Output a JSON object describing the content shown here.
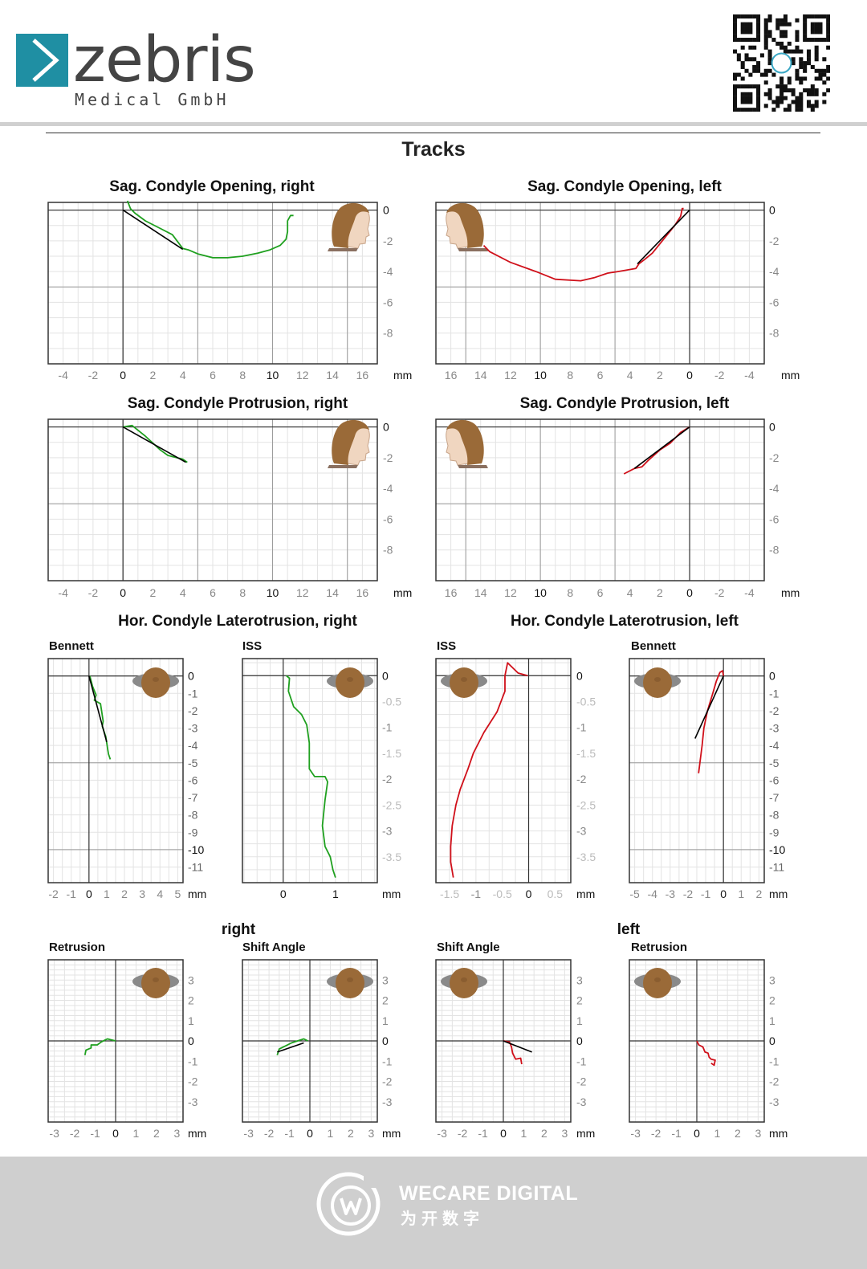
{
  "header": {
    "brand": "zebris",
    "brand_sub": "Medical GmbH",
    "brand_color": "#1f8fa3",
    "qr_code": "qr-code-icon"
  },
  "page_title": "Tracks",
  "sections": {
    "right": "right",
    "left": "left"
  },
  "colors": {
    "right_trace": "#1fa01f",
    "left_trace": "#d0101a",
    "fit_line": "#000000",
    "grid_major": "#999999",
    "grid_minor": "#e3e3e3",
    "head_skin": "#9a6a38",
    "head_disc": "#8a8a8a"
  },
  "chart_data": [
    {
      "id": "sag-opening-right",
      "type": "line",
      "title": "Sag. Condyle Opening, right",
      "unit": "mm",
      "xlim": [
        -5,
        17
      ],
      "ylim": [
        -10,
        0.5
      ],
      "x_ticks": [
        -4,
        -2,
        0,
        2,
        4,
        6,
        8,
        10,
        12,
        14,
        16
      ],
      "y_ticks": [
        0,
        -2,
        -4,
        -6,
        -8
      ],
      "icon": "face-right",
      "series": [
        {
          "kind": "trace",
          "side": "right",
          "points": [
            [
              0.3,
              0.6
            ],
            [
              0.5,
              0.1
            ],
            [
              0.8,
              -0.2
            ],
            [
              1.5,
              -0.7
            ],
            [
              2.5,
              -1.2
            ],
            [
              3.3,
              -1.6
            ],
            [
              4,
              -2.5
            ],
            [
              4.4,
              -2.6
            ],
            [
              5,
              -2.85
            ],
            [
              6,
              -3.1
            ],
            [
              7,
              -3.1
            ],
            [
              8,
              -3.0
            ],
            [
              9,
              -2.8
            ],
            [
              9.8,
              -2.6
            ],
            [
              10.5,
              -2.3
            ],
            [
              10.9,
              -1.9
            ],
            [
              11,
              -1.4
            ],
            [
              11,
              -0.7
            ],
            [
              11.2,
              -0.35
            ],
            [
              11.4,
              -0.35
            ]
          ]
        },
        {
          "kind": "fit",
          "points": [
            [
              0,
              0
            ],
            [
              4,
              -2.55
            ]
          ]
        }
      ]
    },
    {
      "id": "sag-opening-left",
      "type": "line",
      "title": "Sag. Condyle Opening, left",
      "unit": "mm",
      "xlim": [
        17,
        -5
      ],
      "ylim": [
        -10,
        0.5
      ],
      "x_ticks": [
        16,
        14,
        12,
        10,
        8,
        6,
        4,
        2,
        0,
        -2,
        -4
      ],
      "y_ticks": [
        0,
        -2,
        -4,
        -6,
        -8
      ],
      "icon": "face-left",
      "series": [
        {
          "kind": "trace",
          "side": "left",
          "points": [
            [
              13.8,
              -2.3
            ],
            [
              13.4,
              -2.7
            ],
            [
              12,
              -3.4
            ],
            [
              10.3,
              -4.0
            ],
            [
              9,
              -4.5
            ],
            [
              7.3,
              -4.6
            ],
            [
              6.4,
              -4.4
            ],
            [
              5.5,
              -4.1
            ],
            [
              4.8,
              -4.0
            ],
            [
              3.6,
              -3.8
            ],
            [
              3.4,
              -3.5
            ],
            [
              3,
              -3.2
            ],
            [
              2.5,
              -2.8
            ],
            [
              2,
              -2.2
            ],
            [
              1,
              -1.0
            ],
            [
              0.6,
              -0.4
            ],
            [
              0.5,
              0.1
            ],
            [
              0.4,
              0.1
            ]
          ]
        },
        {
          "kind": "fit",
          "points": [
            [
              3.5,
              -3.5
            ],
            [
              0,
              0
            ]
          ]
        }
      ]
    },
    {
      "id": "sag-protrusion-right",
      "type": "line",
      "title": "Sag. Condyle Protrusion, right",
      "unit": "mm",
      "xlim": [
        -5,
        17
      ],
      "ylim": [
        -10,
        0.5
      ],
      "x_ticks": [
        -4,
        -2,
        0,
        2,
        4,
        6,
        8,
        10,
        12,
        14,
        16
      ],
      "y_ticks": [
        0,
        -2,
        -4,
        -6,
        -8
      ],
      "icon": "face-right",
      "series": [
        {
          "kind": "trace",
          "side": "right",
          "points": [
            [
              0,
              0
            ],
            [
              0.6,
              0.1
            ],
            [
              1.5,
              -0.6
            ],
            [
              2.5,
              -1.5
            ],
            [
              3,
              -1.85
            ],
            [
              4,
              -2.1
            ],
            [
              4.3,
              -2.3
            ]
          ]
        },
        {
          "kind": "fit",
          "points": [
            [
              0,
              0
            ],
            [
              4.2,
              -2.3
            ]
          ]
        }
      ]
    },
    {
      "id": "sag-protrusion-left",
      "type": "line",
      "title": "Sag. Condyle Protrusion, left",
      "unit": "mm",
      "xlim": [
        17,
        -5
      ],
      "ylim": [
        -10,
        0.5
      ],
      "x_ticks": [
        16,
        14,
        12,
        10,
        8,
        6,
        4,
        2,
        0,
        -2,
        -4
      ],
      "y_ticks": [
        0,
        -2,
        -4,
        -6,
        -8
      ],
      "icon": "face-left",
      "series": [
        {
          "kind": "trace",
          "side": "left",
          "points": [
            [
              4.4,
              -3.05
            ],
            [
              3.7,
              -2.7
            ],
            [
              3.2,
              -2.6
            ],
            [
              2.8,
              -2.2
            ],
            [
              2,
              -1.5
            ],
            [
              1.3,
              -1.05
            ],
            [
              0.6,
              -0.35
            ],
            [
              0,
              0
            ]
          ]
        },
        {
          "kind": "fit",
          "points": [
            [
              3.7,
              -2.7
            ],
            [
              0,
              0
            ]
          ]
        }
      ]
    },
    {
      "id": "bennett-right",
      "type": "line",
      "title": "Hor. Condyle Laterotrusion, right",
      "subtitle": "Bennett",
      "unit": "mm",
      "xlim": [
        -2.3,
        5.3
      ],
      "ylim": [
        -11.9,
        1
      ],
      "x_ticks": [
        -2,
        -1,
        0,
        1,
        2,
        3,
        4,
        5
      ],
      "y_ticks": [
        0,
        -1,
        -2,
        -3,
        -4,
        -5,
        -6,
        -7,
        -8,
        -9,
        -10,
        -11
      ],
      "icon": "head-top",
      "series": [
        {
          "kind": "trace",
          "side": "right",
          "points": [
            [
              0.05,
              0
            ],
            [
              0.2,
              -0.6
            ],
            [
              0.4,
              -1.1
            ],
            [
              0.3,
              -1.4
            ],
            [
              0.65,
              -1.6
            ],
            [
              0.8,
              -2.6
            ],
            [
              0.75,
              -2.9
            ],
            [
              0.95,
              -3.5
            ],
            [
              1.05,
              -4.2
            ],
            [
              1.1,
              -4.5
            ],
            [
              1.2,
              -4.8
            ]
          ]
        },
        {
          "kind": "fit",
          "points": [
            [
              0,
              0
            ],
            [
              1,
              -3.8
            ]
          ]
        }
      ]
    },
    {
      "id": "iss-right",
      "type": "line",
      "subtitle": "ISS",
      "unit": "mm",
      "xlim": [
        -0.78,
        1.8
      ],
      "ylim": [
        -4.0,
        0.33
      ],
      "x_ticks": [
        0,
        1
      ],
      "y_ticks": [
        0,
        -0.5,
        -1,
        -1.5,
        -2,
        -2.5,
        -3,
        -3.5
      ],
      "icon": "head-top",
      "series": [
        {
          "kind": "trace",
          "side": "right",
          "points": [
            [
              0.06,
              0
            ],
            [
              0.12,
              -0.05
            ],
            [
              0.1,
              -0.3
            ],
            [
              0.2,
              -0.6
            ],
            [
              0.35,
              -0.75
            ],
            [
              0.45,
              -0.95
            ],
            [
              0.5,
              -1.3
            ],
            [
              0.5,
              -1.6
            ],
            [
              0.5,
              -1.8
            ],
            [
              0.6,
              -1.95
            ],
            [
              0.8,
              -1.95
            ],
            [
              0.85,
              -2.05
            ],
            [
              0.8,
              -2.4
            ],
            [
              0.75,
              -2.9
            ],
            [
              0.8,
              -3.3
            ],
            [
              0.9,
              -3.5
            ],
            [
              0.95,
              -3.75
            ],
            [
              1.0,
              -3.9
            ]
          ]
        }
      ]
    },
    {
      "id": "iss-left",
      "type": "line",
      "title": "Hor. Condyle Laterotrusion, left",
      "subtitle": "ISS",
      "unit": "mm",
      "xlim": [
        -1.76,
        0.8
      ],
      "ylim": [
        -4.0,
        0.33
      ],
      "x_ticks": [
        -1.5,
        -1,
        -0.5,
        0,
        0.5
      ],
      "y_ticks": [
        0,
        -0.5,
        -1,
        -1.5,
        -2,
        -2.5,
        -3,
        -3.5
      ],
      "icon": "head-top",
      "series": [
        {
          "kind": "trace",
          "side": "left",
          "points": [
            [
              -0.02,
              0
            ],
            [
              -0.2,
              0.05
            ],
            [
              -0.35,
              0.2
            ],
            [
              -0.4,
              0.25
            ],
            [
              -0.45,
              0
            ],
            [
              -0.45,
              -0.3
            ],
            [
              -0.6,
              -0.7
            ],
            [
              -0.85,
              -1.1
            ],
            [
              -1.05,
              -1.5
            ],
            [
              -1.15,
              -1.8
            ],
            [
              -1.3,
              -2.2
            ],
            [
              -1.38,
              -2.5
            ],
            [
              -1.45,
              -2.9
            ],
            [
              -1.48,
              -3.3
            ],
            [
              -1.48,
              -3.6
            ],
            [
              -1.43,
              -3.9
            ]
          ]
        }
      ]
    },
    {
      "id": "bennett-left",
      "type": "line",
      "subtitle": "Bennett",
      "unit": "mm",
      "xlim": [
        -5.3,
        2.3
      ],
      "ylim": [
        -11.9,
        1
      ],
      "x_ticks": [
        -5,
        -4,
        -3,
        -2,
        -1,
        0,
        1,
        2
      ],
      "y_ticks": [
        0,
        -1,
        -2,
        -3,
        -4,
        -5,
        -6,
        -7,
        -8,
        -9,
        -10,
        -11
      ],
      "icon": "head-top",
      "series": [
        {
          "kind": "trace",
          "side": "left",
          "points": [
            [
              0,
              0
            ],
            [
              -0.05,
              0.3
            ],
            [
              -0.2,
              0.2
            ],
            [
              -0.4,
              -0.3
            ],
            [
              -0.6,
              -1.0
            ],
            [
              -0.9,
              -2.0
            ],
            [
              -1.1,
              -3.0
            ],
            [
              -1.2,
              -4.0
            ],
            [
              -1.3,
              -4.8
            ],
            [
              -1.4,
              -5.6
            ]
          ]
        },
        {
          "kind": "fit",
          "points": [
            [
              0,
              0
            ],
            [
              -1.6,
              -3.6
            ]
          ]
        }
      ]
    },
    {
      "id": "retrusion-right",
      "type": "line",
      "section": "right",
      "subtitle": "Retrusion",
      "unit": "mm",
      "xlim": [
        -3.3,
        3.3
      ],
      "ylim": [
        -4,
        4
      ],
      "x_ticks": [
        -3,
        -2,
        -1,
        0,
        1,
        2,
        3
      ],
      "y_ticks": [
        3,
        2,
        1,
        0,
        -1,
        -2,
        -3
      ],
      "icon": "head-top",
      "series": [
        {
          "kind": "trace",
          "side": "right",
          "points": [
            [
              0,
              0
            ],
            [
              -0.4,
              0.1
            ],
            [
              -0.5,
              0.05
            ],
            [
              -0.7,
              -0.05
            ],
            [
              -0.9,
              -0.2
            ],
            [
              -1.2,
              -0.2
            ],
            [
              -1.2,
              -0.35
            ],
            [
              -1.45,
              -0.45
            ],
            [
              -1.5,
              -0.7
            ]
          ]
        }
      ]
    },
    {
      "id": "shift-angle-right",
      "type": "line",
      "section": "right",
      "subtitle": "Shift Angle",
      "unit": "mm",
      "xlim": [
        -3.3,
        3.3
      ],
      "ylim": [
        -4,
        4
      ],
      "x_ticks": [
        -3,
        -2,
        -1,
        0,
        1,
        2,
        3
      ],
      "y_ticks": [
        3,
        2,
        1,
        0,
        -1,
        -2,
        -3
      ],
      "icon": "head-top",
      "series": [
        {
          "kind": "trace",
          "side": "right",
          "points": [
            [
              -0.1,
              0
            ],
            [
              -0.3,
              0.1
            ],
            [
              -0.6,
              0
            ],
            [
              -0.9,
              -0.1
            ],
            [
              -1.2,
              -0.25
            ],
            [
              -1.5,
              -0.4
            ],
            [
              -1.6,
              -0.7
            ]
          ]
        },
        {
          "kind": "fit",
          "points": [
            [
              -1.6,
              -0.55
            ],
            [
              -0.3,
              -0.1
            ]
          ]
        }
      ]
    },
    {
      "id": "shift-angle-left",
      "type": "line",
      "section": "left",
      "subtitle": "Shift Angle",
      "unit": "mm",
      "xlim": [
        -3.3,
        3.3
      ],
      "ylim": [
        -4,
        4
      ],
      "x_ticks": [
        -3,
        -2,
        -1,
        0,
        1,
        2,
        3
      ],
      "y_ticks": [
        3,
        2,
        1,
        0,
        -1,
        -2,
        -3
      ],
      "icon": "head-top",
      "series": [
        {
          "kind": "trace",
          "side": "left",
          "points": [
            [
              0,
              0
            ],
            [
              0.3,
              -0.05
            ],
            [
              0.4,
              -0.3
            ],
            [
              0.45,
              -0.6
            ],
            [
              0.55,
              -0.8
            ],
            [
              0.6,
              -0.9
            ],
            [
              0.85,
              -0.85
            ],
            [
              0.9,
              -1.15
            ]
          ]
        },
        {
          "kind": "fit",
          "points": [
            [
              0,
              0
            ],
            [
              1.4,
              -0.55
            ]
          ]
        }
      ]
    },
    {
      "id": "retrusion-left",
      "type": "line",
      "section": "left",
      "subtitle": "Retrusion",
      "unit": "mm",
      "xlim": [
        -3.3,
        3.3
      ],
      "ylim": [
        -4,
        4
      ],
      "x_ticks": [
        -3,
        -2,
        -1,
        0,
        1,
        2,
        3
      ],
      "y_ticks": [
        3,
        2,
        1,
        0,
        -1,
        -2,
        -3
      ],
      "icon": "head-top",
      "series": [
        {
          "kind": "trace",
          "side": "left",
          "points": [
            [
              0,
              0
            ],
            [
              0.1,
              -0.2
            ],
            [
              0.3,
              -0.3
            ],
            [
              0.4,
              -0.55
            ],
            [
              0.55,
              -0.6
            ],
            [
              0.6,
              -0.8
            ],
            [
              0.7,
              -0.9
            ],
            [
              0.9,
              -0.95
            ],
            [
              0.85,
              -1.2
            ],
            [
              0.7,
              -1.1
            ]
          ]
        }
      ]
    }
  ],
  "footer": {
    "brand": "WECARE DIGITAL",
    "brand_cn": "为开数字",
    "logo_icon": "wecare-logo-icon"
  }
}
